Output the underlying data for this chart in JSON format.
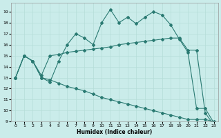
{
  "xlabel": "Humidex (Indice chaleur)",
  "xlim": [
    -0.5,
    23.5
  ],
  "ylim": [
    9,
    19.8
  ],
  "yticks": [
    9,
    10,
    11,
    12,
    13,
    14,
    15,
    16,
    17,
    18,
    19
  ],
  "xticks": [
    0,
    1,
    2,
    3,
    4,
    5,
    6,
    7,
    8,
    9,
    10,
    11,
    12,
    13,
    14,
    15,
    16,
    17,
    18,
    19,
    20,
    21,
    22,
    23
  ],
  "bg_color": "#caecea",
  "line_color": "#2a7a72",
  "line1_y": [
    13,
    15,
    14.5,
    13.0,
    12.6,
    14.5,
    16.0,
    17.0,
    16.6,
    16.0,
    18.0,
    19.2,
    18.0,
    18.5,
    17.9,
    18.5,
    19.0,
    18.7,
    17.8,
    16.5,
    15.3,
    10.2,
    10.2,
    8.9
  ],
  "line2_y": [
    13,
    15,
    14.5,
    13.2,
    15.0,
    15.1,
    15.3,
    15.4,
    15.5,
    15.6,
    15.7,
    15.8,
    16.0,
    16.1,
    16.2,
    16.3,
    16.4,
    16.5,
    16.6,
    16.6,
    15.5,
    15.5,
    9.8,
    8.7
  ],
  "line3_y": [
    13,
    15,
    14.5,
    13.0,
    12.8,
    12.5,
    12.2,
    12.0,
    11.8,
    11.5,
    11.2,
    11.0,
    10.8,
    10.6,
    10.4,
    10.2,
    10.0,
    9.8,
    9.6,
    9.4,
    9.2,
    9.2,
    9.2,
    9.0
  ]
}
